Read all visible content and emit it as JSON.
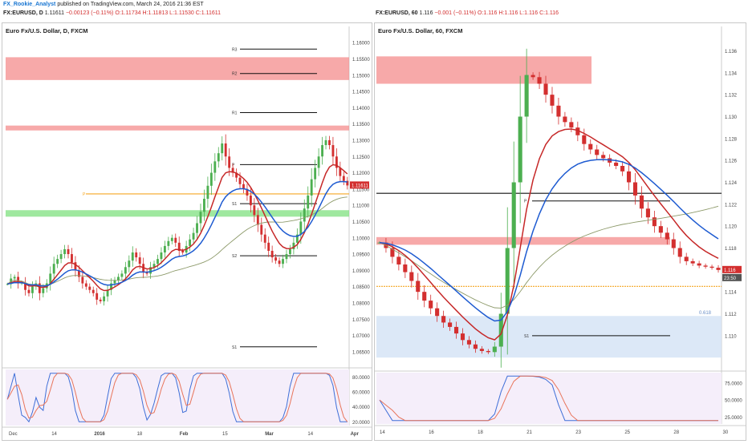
{
  "header": {
    "author": "FX_Rookie_Analyst",
    "published": "published on TradingView.com, March 24, 2016 21:36 EST",
    "left_ticker": "FX:EURUSD, D",
    "left_last": "1.11611",
    "left_change": "−0.00123 (−0.11%)",
    "left_ohlc": "O:1.11734 H:1.11813 L:1.11530 C:1.11611",
    "right_ticker": "FX:EURUSD, 60",
    "right_last": "1.116",
    "right_change": "−0.001 (−0.11%)",
    "right_ohlc": "O:1.116 H:1.116 L:1.116 C:1.116"
  },
  "colors": {
    "up": "#4caf50",
    "down": "#d32f2f",
    "ema_fast": "#c62828",
    "ema_slow": "#1e5bd1",
    "sma_long": "#8d9a6a",
    "resistance_zone": "#f48c8c",
    "support_zone": "#7fe07f",
    "pivot_line": "#f5a623",
    "stoch_k": "#3f6fd8",
    "stoch_d": "#e8745a",
    "fib_zone": "#d3e2f5"
  },
  "chart_data": [
    {
      "type": "candlestick",
      "title": "Euro Fx/U.S. Dollar, D, FXCM",
      "ylim": [
        1.0625,
        1.1625
      ],
      "y_ticks": [
        "1.16000",
        "1.15500",
        "1.15000",
        "1.14500",
        "1.14000",
        "1.13500",
        "1.13000",
        "1.12500",
        "1.12000",
        "1.11500",
        "1.11000",
        "1.10500",
        "1.10000",
        "1.09500",
        "1.09000",
        "1.08500",
        "1.08000",
        "1.07500",
        "1.07000",
        "1.06500"
      ],
      "x_ticks": [
        "Dec",
        "14",
        "2016",
        "18",
        "Feb",
        "15",
        "Mar",
        "14",
        "Apr"
      ],
      "last_price_label": "1.11611",
      "levels": [
        {
          "label": "R3",
          "value": 1.158
        },
        {
          "label": "R2",
          "value": 1.1505
        },
        {
          "label": "R1",
          "value": 1.1385
        },
        {
          "label": "P",
          "value": 1.1225
        },
        {
          "label": "S1",
          "value": 1.1105
        },
        {
          "label": "S2",
          "value": 1.0945
        },
        {
          "label": "S1",
          "value": 1.0665
        }
      ],
      "zones": [
        {
          "name": "resistance",
          "from": 1.1485,
          "to": 1.1555
        },
        {
          "name": "resistance",
          "from": 1.133,
          "to": 1.1345
        },
        {
          "name": "support",
          "from": 1.1065,
          "to": 1.1085
        }
      ],
      "pivot_line": {
        "label": "P",
        "value": 1.1135
      },
      "closes": [
        1.0858,
        1.0875,
        1.088,
        1.086,
        1.0862,
        1.084,
        1.083,
        1.085,
        1.086,
        1.083,
        1.0845,
        1.086,
        1.089,
        1.092,
        1.0935,
        1.095,
        1.0965,
        1.095,
        1.0925,
        1.09,
        1.088,
        1.086,
        1.085,
        1.084,
        1.083,
        1.081,
        1.0805,
        1.082,
        1.084,
        1.086,
        1.087,
        1.088,
        1.089,
        1.091,
        1.093,
        1.0955,
        1.094,
        1.092,
        1.0895,
        1.089,
        1.091,
        1.092,
        1.0935,
        1.0955,
        1.0975,
        1.099,
        1.1,
        1.0985,
        1.096,
        1.0955,
        1.0975,
        1.0995,
        1.1015,
        1.1045,
        1.108,
        1.112,
        1.116,
        1.12,
        1.1235,
        1.126,
        1.129,
        1.125,
        1.1215,
        1.12,
        1.1185,
        1.1165,
        1.115,
        1.113,
        1.11,
        1.107,
        1.104,
        1.101,
        1.0985,
        1.096,
        1.094,
        1.093,
        1.092,
        1.0935,
        1.095,
        1.0965,
        1.0985,
        1.101,
        1.105,
        1.109,
        1.113,
        1.118,
        1.1215,
        1.125,
        1.1285,
        1.13,
        1.1285,
        1.125,
        1.1215,
        1.119,
        1.1175,
        1.1161
      ],
      "stochastic": {
        "ylim": [
          15,
          90
        ],
        "y_ticks": [
          "80.0000",
          "60.0000",
          "40.0000",
          "20.0000"
        ]
      }
    },
    {
      "type": "candlestick",
      "title": "Euro Fx/U.S. Dollar, 60, FXCM",
      "ylim": [
        1.1075,
        1.1375
      ],
      "y_ticks": [
        "1.136",
        "1.134",
        "1.132",
        "1.130",
        "1.128",
        "1.126",
        "1.124",
        "1.122",
        "1.120",
        "1.118",
        "1.116",
        "1.114",
        "1.112",
        "1.110"
      ],
      "x_ticks": [
        "14",
        "16",
        "18",
        "21",
        "23",
        "25",
        "28",
        "30"
      ],
      "last_price_label": "1.116",
      "countdown_label": "23:50",
      "fib_label": "0.618",
      "levels": [
        {
          "label": "P",
          "value": 1.1223
        },
        {
          "label": "S1",
          "value": 1.11
        }
      ],
      "zones": [
        {
          "name": "resistance",
          "from": 1.133,
          "to": 1.1355
        },
        {
          "name": "resistance",
          "from": 1.1183,
          "to": 1.119
        }
      ],
      "horizontal_line": 1.123,
      "support_line": 1.1145,
      "fib_zone": {
        "from": 1.108,
        "to": 1.1118
      },
      "closes": [
        1.1185,
        1.118,
        1.1172,
        1.1165,
        1.1158,
        1.115,
        1.114,
        1.1132,
        1.1125,
        1.1118,
        1.1112,
        1.1108,
        1.1102,
        1.1096,
        1.1092,
        1.1088,
        1.1086,
        1.1085,
        1.109,
        1.112,
        1.118,
        1.124,
        1.13,
        1.1338,
        1.1336,
        1.133,
        1.132,
        1.131,
        1.13,
        1.1295,
        1.129,
        1.1283,
        1.1275,
        1.127,
        1.1265,
        1.1262,
        1.1258,
        1.1255,
        1.125,
        1.124,
        1.1228,
        1.1216,
        1.1208,
        1.12,
        1.1194,
        1.1188,
        1.118,
        1.1172,
        1.1168,
        1.1166,
        1.1164,
        1.1163,
        1.1162,
        1.116
      ],
      "stochastic": {
        "ylim": [
          15,
          90
        ],
        "y_ticks": [
          "75.0000",
          "50.0000",
          "25.0000"
        ]
      }
    }
  ]
}
